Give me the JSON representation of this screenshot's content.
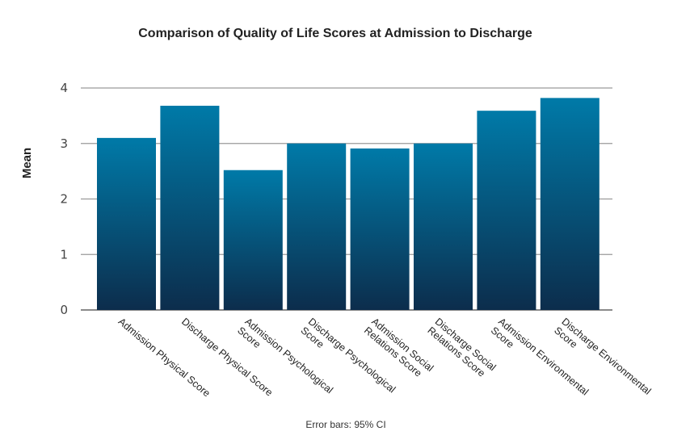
{
  "chart_data": {
    "type": "bar",
    "title": "Comparison of Quality of Life Scores at Admission to Discharge",
    "xlabel": "",
    "ylabel": "Mean",
    "ylim": [
      0,
      4
    ],
    "yticks": [
      0,
      1,
      2,
      3,
      4
    ],
    "grid": true,
    "categories": [
      [
        "Admission Physical Score"
      ],
      [
        "Discharge Physical Score"
      ],
      [
        "Admission Psychological",
        "Score"
      ],
      [
        "Discharge Psychological",
        "Score"
      ],
      [
        "Admission Social",
        "Relations Score"
      ],
      [
        "Discharge Social",
        "Relations Score"
      ],
      [
        "Admission Environmental",
        "Score"
      ],
      [
        "Discharge Environmental",
        "Score"
      ]
    ],
    "values": [
      3.1,
      3.68,
      2.52,
      3.0,
      2.91,
      3.0,
      3.59,
      3.82
    ],
    "footnote": "Error bars: 95% CI",
    "colors": {
      "bar_top": "#007aa8",
      "bar_bottom": "#0c2d4c",
      "grid": "#9a9a9a"
    }
  }
}
